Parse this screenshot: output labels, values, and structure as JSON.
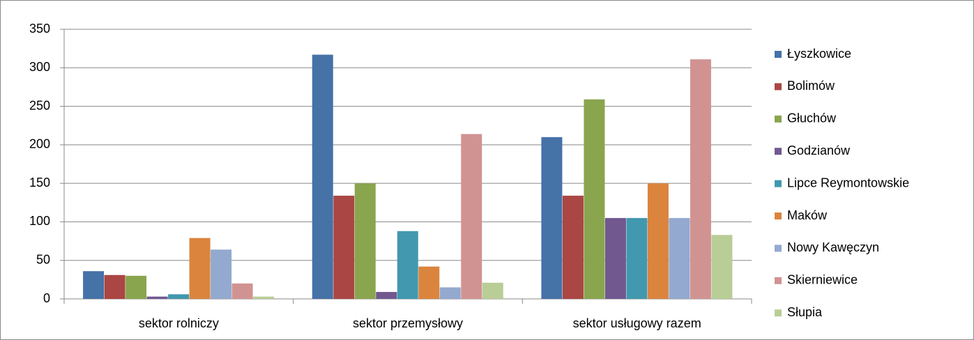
{
  "chart_data": {
    "type": "bar",
    "categories": [
      "sektor rolniczy",
      "sektor przemysłowy",
      "sektor usługowy razem"
    ],
    "series": [
      {
        "name": "Łyszkowice",
        "color": "#4572a7",
        "values": [
          36,
          317,
          210
        ]
      },
      {
        "name": "Bolimów",
        "color": "#aa4643",
        "values": [
          31,
          134,
          134
        ]
      },
      {
        "name": "Głuchów",
        "color": "#89a54e",
        "values": [
          30,
          150,
          259
        ]
      },
      {
        "name": "Godzianów",
        "color": "#71588f",
        "values": [
          3,
          9,
          105
        ]
      },
      {
        "name": "Lipce Reymontowskie",
        "color": "#4198af",
        "values": [
          6,
          88,
          105
        ]
      },
      {
        "name": "Maków",
        "color": "#db843d",
        "values": [
          79,
          42,
          150
        ]
      },
      {
        "name": "Nowy Kawęczyn",
        "color": "#93a9cf",
        "values": [
          64,
          15,
          105
        ]
      },
      {
        "name": "Skierniewice",
        "color": "#d19392",
        "values": [
          20,
          214,
          311
        ]
      },
      {
        "name": "Słupia",
        "color": "#b9cd96",
        "values": [
          3,
          21,
          83
        ]
      }
    ],
    "ylim": [
      0,
      350
    ],
    "yticks": [
      0,
      50,
      100,
      150,
      200,
      250,
      300,
      350
    ],
    "grid": true,
    "legend": "right"
  }
}
